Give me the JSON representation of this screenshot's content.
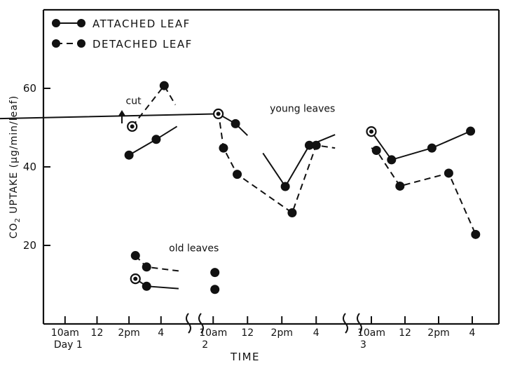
{
  "chart_data": {
    "type": "line",
    "legend": {
      "placement": "top-left",
      "entries": [
        {
          "label": "ATTACHED LEAF",
          "style": "solid"
        },
        {
          "label": "DETACHED LEAF",
          "style": "dashed"
        }
      ]
    },
    "xlabel": "TIME",
    "ylabel_main": "CO",
    "ylabel_sub": "2",
    "ylabel_rest": " UPTAKE  (µg/min/leaf)",
    "yticks": [
      "20",
      "40",
      "60"
    ],
    "ylim": [
      0,
      78
    ],
    "xticks": [
      {
        "label": "10am",
        "sub": "Day 1",
        "hour": 10
      },
      {
        "label": "12",
        "sub": "",
        "hour": 12
      },
      {
        "label": "2pm",
        "sub": "",
        "hour": 14
      },
      {
        "label": "4",
        "sub": "",
        "hour": 16
      },
      {
        "label": "10am",
        "sub": "2",
        "hour": 34
      },
      {
        "label": "12",
        "sub": "",
        "hour": 36
      },
      {
        "label": "2pm",
        "sub": "",
        "hour": 38
      },
      {
        "label": "4",
        "sub": "",
        "hour": 40
      },
      {
        "label": "10am",
        "sub": "3",
        "hour": 58
      },
      {
        "label": "12",
        "sub": "",
        "hour": 60
      },
      {
        "label": "2pm",
        "sub": "",
        "hour": 62
      },
      {
        "label": "4",
        "sub": "",
        "hour": 64
      }
    ],
    "annotations": [
      {
        "text": "cut",
        "hour": 13.8,
        "y": 56
      },
      {
        "text": "young leaves",
        "hour": 37.3,
        "y": 54
      },
      {
        "text": "old leaves",
        "hour": 16.5,
        "y": 18.5
      }
    ],
    "groups": [
      {
        "name": "young leaves",
        "series": [
          {
            "style": "solid",
            "segments": [
              [
                [
                  14.0,
                  43.0
                ],
                [
                  15.7,
                  47.0
                ],
                [
                  17.0,
                  50.3
                ]
              ],
              [
                [
                  18.2,
                  52.3
                ],
                [
                  34.3,
                  53.5
                ],
                [
                  35.3,
                  51.0
                ],
                [
                  36.0,
                  48.0
                ]
              ],
              [
                [
                  36.9,
                  43.5
                ],
                [
                  38.2,
                  35.0
                ],
                [
                  39.6,
                  45.5
                ],
                [
                  41.1,
                  48.2
                ]
              ],
              [
                [
                  58.0,
                  49.0
                ],
                [
                  59.2,
                  41.8
                ],
                [
                  61.6,
                  44.8
                ],
                [
                  63.9,
                  49.1
                ]
              ]
            ]
          },
          {
            "style": "dashed",
            "segments": [
              [
                [
                  14.2,
                  50.3
                ],
                [
                  16.2,
                  60.7
                ],
                [
                  16.9,
                  55.8
                ]
              ],
              [
                [
                  34.3,
                  54.0
                ],
                [
                  34.6,
                  44.8
                ],
                [
                  35.4,
                  38.1
                ],
                [
                  38.6,
                  28.3
                ],
                [
                  40.0,
                  45.5
                ],
                [
                  41.1,
                  44.8
                ]
              ],
              [
                [
                  58.0,
                  44.8
                ],
                [
                  58.3,
                  44.2
                ],
                [
                  59.7,
                  35.1
                ],
                [
                  62.6,
                  38.4
                ],
                [
                  64.2,
                  22.8
                ]
              ]
            ]
          }
        ]
      },
      {
        "name": "old leaves",
        "series": [
          {
            "style": "solid",
            "segments": [
              [
                [
                  14.4,
                  11.5
                ],
                [
                  15.1,
                  9.6
                ],
                [
                  17.1,
                  9.0
                ]
              ],
              [
                [
                  34.1,
                  8.8
                ]
              ]
            ]
          },
          {
            "style": "dashed",
            "segments": [
              [
                [
                  14.4,
                  17.4
                ],
                [
                  15.1,
                  14.5
                ],
                [
                  17.1,
                  13.5
                ]
              ],
              [
                [
                  34.1,
                  13.1
                ]
              ]
            ]
          }
        ]
      }
    ],
    "markers": [
      {
        "hour": 14.0,
        "y": 43.0,
        "fill": "solid"
      },
      {
        "hour": 15.7,
        "y": 47.0,
        "fill": "solid"
      },
      {
        "hour": 14.2,
        "y": 50.3,
        "fill": "ring"
      },
      {
        "hour": 16.2,
        "y": 60.7,
        "fill": "solid"
      },
      {
        "hour": 34.3,
        "y": 53.5,
        "fill": "ring"
      },
      {
        "hour": 35.3,
        "y": 51.0,
        "fill": "solid"
      },
      {
        "hour": 34.6,
        "y": 44.8,
        "fill": "solid"
      },
      {
        "hour": 35.4,
        "y": 38.1,
        "fill": "solid"
      },
      {
        "hour": 38.2,
        "y": 35.0,
        "fill": "solid"
      },
      {
        "hour": 38.6,
        "y": 28.3,
        "fill": "solid"
      },
      {
        "hour": 39.6,
        "y": 45.5,
        "fill": "solid"
      },
      {
        "hour": 40.0,
        "y": 45.5,
        "fill": "solid"
      },
      {
        "hour": 58.0,
        "y": 49.0,
        "fill": "ring"
      },
      {
        "hour": 58.3,
        "y": 44.2,
        "fill": "solid"
      },
      {
        "hour": 59.2,
        "y": 41.8,
        "fill": "solid"
      },
      {
        "hour": 59.7,
        "y": 35.1,
        "fill": "solid"
      },
      {
        "hour": 61.6,
        "y": 44.8,
        "fill": "solid"
      },
      {
        "hour": 62.6,
        "y": 38.4,
        "fill": "solid"
      },
      {
        "hour": 63.9,
        "y": 49.1,
        "fill": "solid"
      },
      {
        "hour": 64.2,
        "y": 22.8,
        "fill": "solid"
      },
      {
        "hour": 14.4,
        "y": 17.4,
        "fill": "solid"
      },
      {
        "hour": 15.1,
        "y": 14.5,
        "fill": "solid"
      },
      {
        "hour": 34.1,
        "y": 13.1,
        "fill": "solid"
      },
      {
        "hour": 14.4,
        "y": 11.5,
        "fill": "ring"
      },
      {
        "hour": 15.1,
        "y": 9.6,
        "fill": "solid"
      },
      {
        "hour": 34.1,
        "y": 8.8,
        "fill": "solid"
      }
    ]
  }
}
